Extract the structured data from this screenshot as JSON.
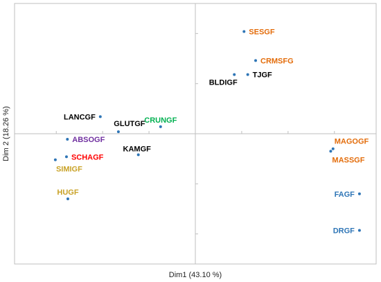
{
  "chart_data": {
    "type": "scatter",
    "title": "",
    "xlabel": "Dim1 (43.10 %)",
    "ylabel": "Dim 2 (18.26 %)",
    "xlim": [
      -3.9,
      3.9
    ],
    "ylim": [
      -2.6,
      2.6
    ],
    "grid": false,
    "legend": "none",
    "marker_color": "#2E75B6",
    "points": [
      {
        "label": "SESGF",
        "x": 1.05,
        "y": 2.04,
        "color": "#E36C0A",
        "anchor": "right"
      },
      {
        "label": "CRMSFG",
        "x": 1.3,
        "y": 1.46,
        "color": "#E36C0A",
        "anchor": "right"
      },
      {
        "label": "TJGF",
        "x": 1.13,
        "y": 1.18,
        "color": "#000000",
        "anchor": "right"
      },
      {
        "label": "BLDIGF",
        "x": 0.84,
        "y": 1.18,
        "color": "#000000",
        "anchor": "below-left"
      },
      {
        "label": "LANCGF",
        "x": -2.05,
        "y": 0.34,
        "color": "#000000",
        "anchor": "left"
      },
      {
        "label": "CRUNGF",
        "x": -0.75,
        "y": 0.14,
        "color": "#00B050",
        "anchor": "above"
      },
      {
        "label": "GLUTGF",
        "x": -1.66,
        "y": 0.04,
        "color": "#000000",
        "anchor": "above"
      },
      {
        "label": "ABSOGF",
        "x": -2.76,
        "y": -0.11,
        "color": "#7030A0",
        "anchor": "right"
      },
      {
        "label": "KAMGF",
        "x": -1.23,
        "y": -0.42,
        "color": "#000000",
        "anchor": "above"
      },
      {
        "label": "SCHAGF",
        "x": -2.78,
        "y": -0.46,
        "color": "#FF0000",
        "anchor": "right"
      },
      {
        "label": "SIMIGF",
        "x": -3.02,
        "y": -0.52,
        "color": "#C9A227",
        "anchor": "below"
      },
      {
        "label": "MAGOGF",
        "x": 2.97,
        "y": -0.3,
        "color": "#E36C0A",
        "anchor": "below-right"
      },
      {
        "label": "MASSGF",
        "x": 2.92,
        "y": -0.35,
        "color": "#E36C0A",
        "anchor": "below-right"
      },
      {
        "label": "HUGF",
        "x": -2.75,
        "y": -1.3,
        "color": "#C9A227",
        "anchor": "above"
      },
      {
        "label": "FAGF",
        "x": 3.54,
        "y": -1.2,
        "color": "#2E75B6",
        "anchor": "left"
      },
      {
        "label": "DRGF",
        "x": 3.54,
        "y": -1.93,
        "color": "#2E75B6",
        "anchor": "left"
      }
    ]
  }
}
